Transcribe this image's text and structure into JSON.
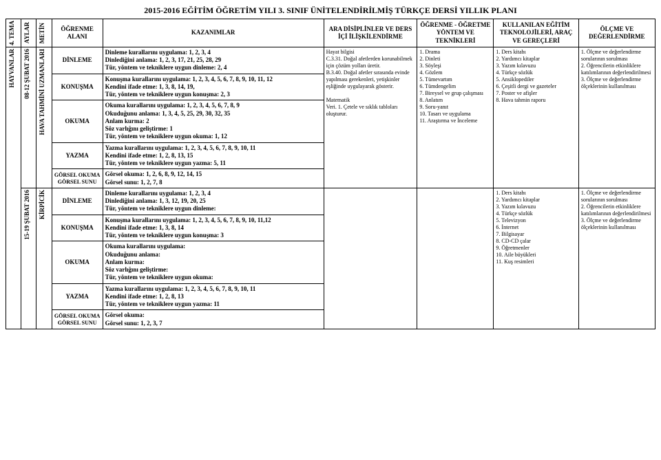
{
  "title": "2015-2016 EĞİTİM ÖĞRETİM YILI 3. SINIF ÜNİTELENDİRİLMİŞ TÜRKÇE DERSİ YILLIK PLANI",
  "headers": {
    "tema": "4. TEMA",
    "aylar": "AYLAR",
    "metin": "METİN",
    "alan": "ÖĞRENME ALANI",
    "kazanim": "KAZANIMLAR",
    "ara": "ARA DİSİPLİNLER VE DERS İÇİ İLİŞKİLENDİRME",
    "ogretme": "ÖĞRENME - ÖĞRETME YÖNTEM VE TEKNİKLERİ",
    "kullanilan": "KULLANILAN EĞİTİM TEKNOLOJİLERİ, ARAÇ VE GEREÇLERİ",
    "olcme": "ÖLÇME VE DEĞERLENDİRME"
  },
  "tema_label": "HAYVANLAR",
  "week1": {
    "aylar": "08-12 ŞUBAT 2016",
    "metin": "HAVA TAHMİNİ UZMANLARI",
    "alan": {
      "dinleme": "DİNLEME",
      "konusma": "KONUŞMA",
      "okuma": "OKUMA",
      "yazma": "YAZMA",
      "gorsel": "GÖRSEL OKUMA GÖRSEL SUNU"
    },
    "kaz": {
      "dinleme": "Dinleme kurallarını uygulama: 1, 2, 3, 4\nDinlediğini anlama: 1, 2, 3, 17, 21, 25, 28, 29\nTür, yöntem ve tekniklere uygun dinleme: 2, 4",
      "konusma": "Konuşma kurallarını uygulama: 1, 2, 3, 4, 5, 6, 7, 8, 9, 10, 11, 12\nKendini ifade etme: 1, 3, 8, 14, 19,\nTür, yöntem ve tekniklere uygun konuşma: 2, 3",
      "okuma": "Okuma kurallarını uygulama: 1, 2, 3, 4, 5, 6, 7, 8, 9\nOkuduğunu anlama: 1, 3, 4, 5, 25, 29, 30, 32, 35\nAnlam kurma: 2\nSöz varlığını geliştirme: 1\nTür, yöntem ve tekniklere uygun okuma: 1, 12",
      "yazma": "Yazma kurallarını uygulama: 1, 2, 3, 4, 5, 6, 7, 8, 9, 10, 11\nKendini ifade etme: 1, 2, 8, 13, 15\nTür, yöntem ve tekniklere uygun yazma: 5, 11",
      "gorsel": "Görsel okuma: 1, 2, 6, 8, 9, 12, 14, 15\nGörsel sunu: 1, 2, 7, 8"
    },
    "ara": "Hayat bilgisi\nC.3.31. Doğal afetlerden korunabilmek için çözüm yolları üretir.\nB.3.40. Doğal afetler sırasında evinde yapılması gerekenleri, yetişkinler eşliğinde uygulayarak gösterir.\n\nMatematik\nVeri. 1. Çetele ve sıklık tabloları oluşturur.",
    "ogretme": [
      "1. Drama",
      "2. Dinleti",
      "3. Söyleşi",
      "4. Gözlem",
      "5. Tümevartım",
      "6. Tümdengelim",
      "7. Bireysel ve grup çalışması",
      "8. Anlatım",
      "9. Soru-yanıt",
      "10. Tasarı ve uygulama",
      "11. Araştırma ve İnceleme"
    ],
    "kullanilan": [
      "1. Ders kitabı",
      "2. Yardımcı kitaplar",
      "3. Yazım kılavuzu",
      "4. Türkçe sözlük",
      "5. Ansiklopediler",
      "6. Çeşitli dergi ve gazeteler",
      "7. Poster ve afişler",
      "8. Hava tahmin raporu"
    ],
    "olcme": "1.   Ölçme   ve değerlendirme sorularının sorulması\n2.      Öğrencilerin etkinliklere katılımlarının değerlendirilmesi\n3.   Ölçme   ve değerlendirme ölçeklerinin kullanılması"
  },
  "week2": {
    "aylar": "15-19 ŞUBAT 2016",
    "metin": "KİRPİCİK",
    "alan": {
      "dinleme": "DİNLEME",
      "konusma": "KONUŞMA",
      "okuma": "OKUMA",
      "yazma": "YAZMA",
      "gorsel": "GÖRSEL OKUMA GÖRSEL SUNU"
    },
    "kaz": {
      "dinleme": "Dinleme kurallarını uygulama: 1, 2, 3, 4\nDinlediğini anlama: 1, 3, 12, 19, 20, 25\nTür, yöntem ve tekniklere uygun dinleme:",
      "konusma": "Konuşma kurallarını uygulama: 1, 2, 3, 4, 5, 6, 7, 8, 9, 10, 11,12\nKendini ifade etme: 1, 3, 8, 14\nTür, yöntem ve tekniklere uygun konuşma: 3",
      "okuma": "Okuma kurallarını uygulama:\nOkuduğunu anlama:\nAnlam kurma:\nSöz varlığını geliştirme:\nTür, yöntem ve tekniklere uygun okuma:",
      "yazma": "Yazma kurallarını uygulama: 1, 2, 3, 4, 5, 6, 7, 8, 9, 10, 11\nKendini ifade etme: 1, 2, 8, 13\nTür, yöntem ve tekniklere uygun yazma: 11",
      "gorsel": "Görsel okuma:\nGörsel sunu: 1, 2, 3, 7"
    },
    "ara": "",
    "ogretme": [],
    "kullanilan": [
      "1. Ders kitabı",
      "2. Yardımcı kitaplar",
      "3. Yazım kılavuzu",
      "4. Türkçe sözlük",
      "5. Televizyon",
      "6. İnternet",
      "7. Bilgisayar",
      "8. CD-CD çalar",
      "9. Öğretmenler",
      "10. Aile büyükleri",
      "11. Kuş resimleri"
    ],
    "olcme": "1.   Ölçme   ve değerlendirme sorularının sorulması\n2.      Öğrencilerin etkinliklere katılımlarının değerlendirilmesi\n3.   Ölçme   ve değerlendirme ölçeklerinin kullanılması"
  }
}
